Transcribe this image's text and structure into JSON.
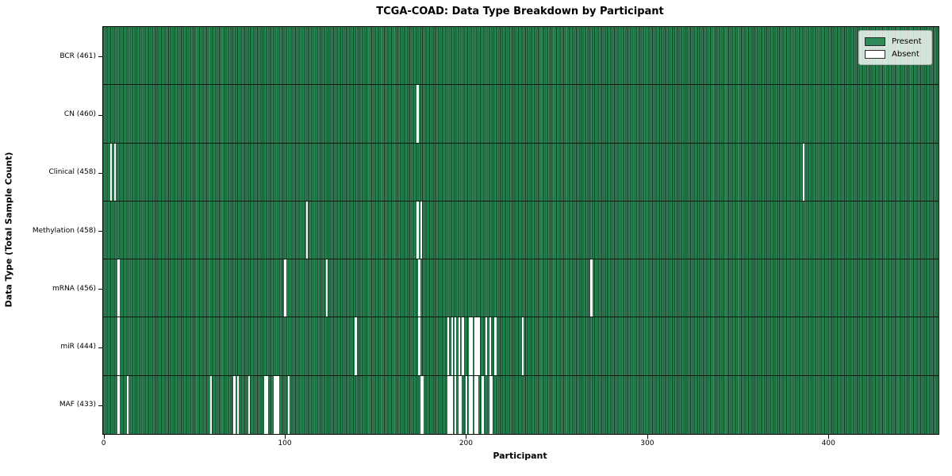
{
  "title": "TCGA-COAD: Data Type Breakdown by Participant",
  "axes": {
    "xlabel": "Participant",
    "ylabel": "Data Type (Total Sample Count)"
  },
  "legend": {
    "present_label": "Present",
    "absent_label": "Absent"
  },
  "colors": {
    "present": "#2e8b57",
    "absent": "#ffffff",
    "bar_edge": "#123824",
    "plot_border": "#000000"
  },
  "chart_data": {
    "type": "heatmap",
    "title": "TCGA-COAD: Data Type Breakdown by Participant",
    "xlabel": "Participant",
    "ylabel": "Data Type (Total Sample Count)",
    "x_range": [
      0,
      461
    ],
    "x_ticks": [
      0,
      100,
      200,
      300,
      400
    ],
    "grid": false,
    "legend_position": "upper right",
    "legend_entries": [
      "Present",
      "Absent"
    ],
    "total_participants": 461,
    "rows": [
      {
        "label": "BCR (461)",
        "data_type": "BCR",
        "present_count": 461,
        "absent_participants": []
      },
      {
        "label": "CN (460)",
        "data_type": "CN",
        "present_count": 460,
        "absent_participants": [
          173
        ]
      },
      {
        "label": "Clinical (458)",
        "data_type": "Clinical",
        "present_count": 458,
        "absent_participants": [
          4,
          6,
          386
        ]
      },
      {
        "label": "Methylation (458)",
        "data_type": "Methylation",
        "present_count": 458,
        "absent_participants": [
          112,
          173,
          175
        ]
      },
      {
        "label": "mRNA (456)",
        "data_type": "mRNA",
        "present_count": 456,
        "absent_participants": [
          8,
          100,
          123,
          174,
          269
        ]
      },
      {
        "label": "miR (444)",
        "data_type": "miR",
        "present_count": 444,
        "absent_participants": [
          8,
          139,
          174,
          190,
          192,
          194,
          196,
          198,
          202,
          203,
          205,
          206,
          207,
          211,
          213,
          216,
          231
        ]
      },
      {
        "label": "MAF (433)",
        "data_type": "MAF",
        "present_count": 433,
        "absent_participants": [
          8,
          13,
          59,
          72,
          74,
          80,
          89,
          90,
          94,
          95,
          96,
          102,
          175,
          176,
          190,
          191,
          192,
          194,
          196,
          197,
          200,
          202,
          203,
          205,
          206,
          209,
          213,
          214
        ]
      }
    ]
  }
}
